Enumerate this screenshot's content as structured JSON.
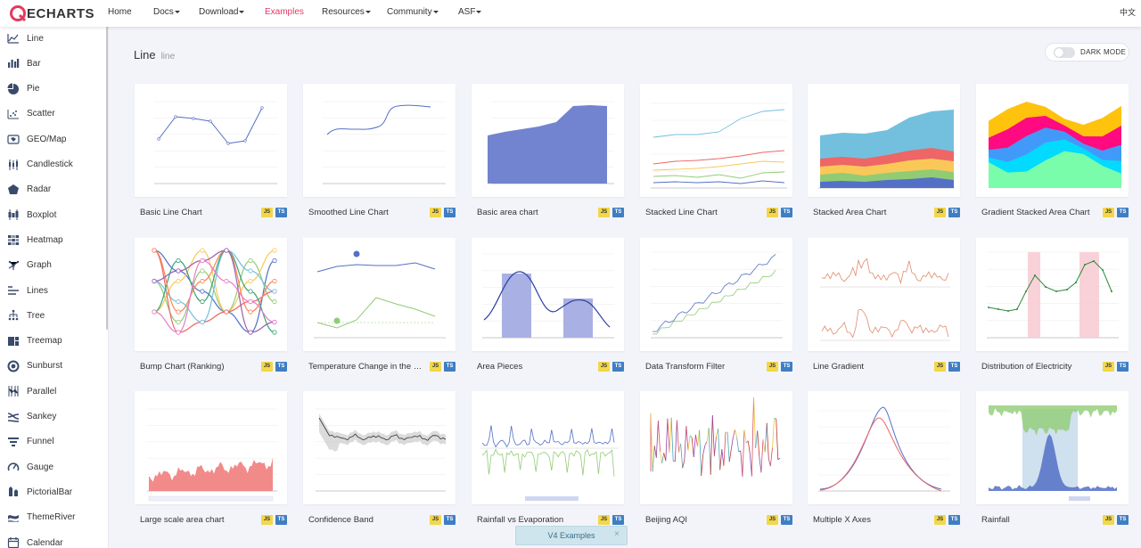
{
  "nav": {
    "logo_text": "ECHARTS",
    "items": [
      {
        "label": "Home",
        "dropdown": false,
        "active": false
      },
      {
        "label": "Docs",
        "dropdown": true,
        "active": false
      },
      {
        "label": "Download",
        "dropdown": true,
        "active": false
      },
      {
        "label": "Examples",
        "dropdown": false,
        "active": true
      },
      {
        "label": "Resources",
        "dropdown": true,
        "active": false
      },
      {
        "label": "Community",
        "dropdown": true,
        "active": false
      },
      {
        "label": "ASF",
        "dropdown": true,
        "active": false
      }
    ],
    "language": "中文"
  },
  "sidebar": {
    "items": [
      {
        "label": "Line",
        "icon": "line-chart-icon"
      },
      {
        "label": "Bar",
        "icon": "bar-chart-icon"
      },
      {
        "label": "Pie",
        "icon": "pie-chart-icon"
      },
      {
        "label": "Scatter",
        "icon": "scatter-chart-icon"
      },
      {
        "label": "GEO/Map",
        "icon": "map-icon"
      },
      {
        "label": "Candlestick",
        "icon": "candlestick-icon"
      },
      {
        "label": "Radar",
        "icon": "radar-icon"
      },
      {
        "label": "Boxplot",
        "icon": "boxplot-icon"
      },
      {
        "label": "Heatmap",
        "icon": "heatmap-icon"
      },
      {
        "label": "Graph",
        "icon": "graph-icon"
      },
      {
        "label": "Lines",
        "icon": "lines-icon"
      },
      {
        "label": "Tree",
        "icon": "tree-icon"
      },
      {
        "label": "Treemap",
        "icon": "treemap-icon"
      },
      {
        "label": "Sunburst",
        "icon": "sunburst-icon"
      },
      {
        "label": "Parallel",
        "icon": "parallel-icon"
      },
      {
        "label": "Sankey",
        "icon": "sankey-icon"
      },
      {
        "label": "Funnel",
        "icon": "funnel-icon"
      },
      {
        "label": "Gauge",
        "icon": "gauge-icon"
      },
      {
        "label": "PictorialBar",
        "icon": "pictorialbar-icon"
      },
      {
        "label": "ThemeRiver",
        "icon": "themeriver-icon"
      },
      {
        "label": "Calendar",
        "icon": "calendar-icon"
      }
    ]
  },
  "header": {
    "title": "Line",
    "subtitle": "line"
  },
  "dark_mode": {
    "label": "DARK MODE",
    "enabled": false
  },
  "badges": {
    "js": "JS",
    "ts": "TS"
  },
  "examples": [
    {
      "title": "Basic Line Chart",
      "kind": "basic-line"
    },
    {
      "title": "Smoothed Line Chart",
      "kind": "smooth-line"
    },
    {
      "title": "Basic area chart",
      "kind": "basic-area"
    },
    {
      "title": "Stacked Line Chart",
      "kind": "stacked-line"
    },
    {
      "title": "Stacked Area Chart",
      "kind": "stacked-area"
    },
    {
      "title": "Gradient Stacked Area Chart",
      "kind": "gradient-stacked"
    },
    {
      "title": "Bump Chart (Ranking)",
      "kind": "bump"
    },
    {
      "title": "Temperature Change in the Coming Week",
      "kind": "temperature"
    },
    {
      "title": "Area Pieces",
      "kind": "area-pieces"
    },
    {
      "title": "Data Transform Filter",
      "kind": "transform-filter"
    },
    {
      "title": "Line Gradient",
      "kind": "line-gradient"
    },
    {
      "title": "Distribution of Electricity",
      "kind": "electricity"
    },
    {
      "title": "Large scale area chart",
      "kind": "large-area"
    },
    {
      "title": "Confidence Band",
      "kind": "confidence"
    },
    {
      "title": "Rainfall vs Evaporation",
      "kind": "rain-evap"
    },
    {
      "title": "Beijing AQI",
      "kind": "aqi"
    },
    {
      "title": "Multiple X Axes",
      "kind": "multi-x"
    },
    {
      "title": "Rainfall",
      "kind": "rainfall"
    }
  ],
  "v4_banner": {
    "label": "V4 Examples",
    "close": "×"
  },
  "colors": {
    "accent": "#e43961",
    "echarts_blue": "#5470c6",
    "green": "#91cc75",
    "yellow": "#fac858",
    "red": "#ee6666",
    "cyan": "#73c0de"
  }
}
